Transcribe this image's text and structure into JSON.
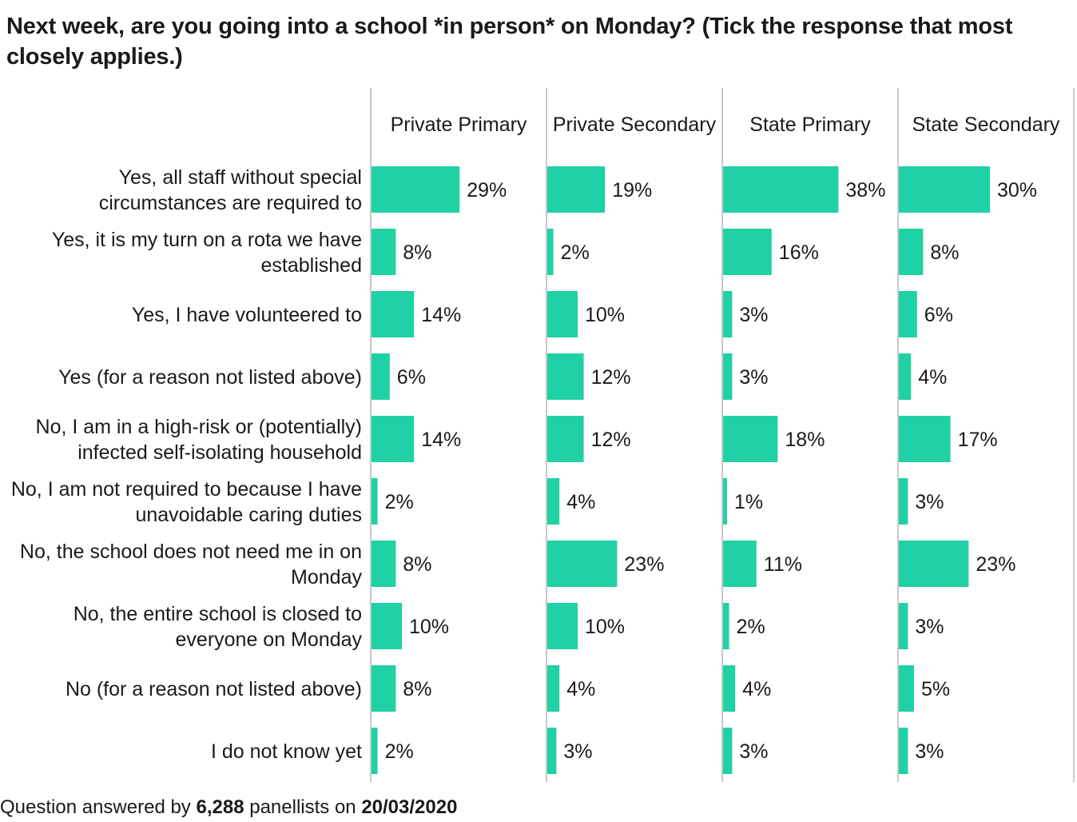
{
  "title": "Next week, are you going into a school *in person* on Monday? (Tick the response that most closely applies.)",
  "footer": {
    "prefix": "Question answered by",
    "count": "6,288",
    "middle": "panellists on",
    "date": "20/03/2020"
  },
  "colors": {
    "bar": "#20d1a5",
    "divider": "#c8c8c8",
    "text": "#1a1a1a"
  },
  "chart_data": {
    "type": "bar",
    "orientation": "horizontal",
    "layout": "small-multiples",
    "title": "Next week, are you going into a school *in person* on Monday? (Tick the response that most closely applies.)",
    "value_suffix": "%",
    "categories": [
      [
        "Yes, all staff without special",
        "circumstances are required to"
      ],
      [
        "Yes, it is my turn on a rota we have",
        "established"
      ],
      [
        "Yes, I have volunteered to"
      ],
      [
        "Yes (for a reason not listed above)"
      ],
      [
        "No, I am in a high-risk or (potentially)",
        "infected self-isolating household"
      ],
      [
        "No, I am not required to because I have",
        "unavoidable caring duties"
      ],
      [
        "No, the school does not need me in on",
        "Monday"
      ],
      [
        "No, the entire school is closed to",
        "everyone on Monday"
      ],
      [
        "No (for a reason not listed above)"
      ],
      [
        "I do not know yet"
      ]
    ],
    "series": [
      {
        "name": "Private Primary",
        "values": [
          29,
          8,
          14,
          6,
          14,
          2,
          8,
          10,
          8,
          2
        ]
      },
      {
        "name": "Private Secondary",
        "values": [
          19,
          2,
          10,
          12,
          12,
          4,
          23,
          10,
          4,
          3
        ]
      },
      {
        "name": "State Primary",
        "values": [
          38,
          16,
          3,
          3,
          18,
          1,
          11,
          2,
          4,
          3
        ]
      },
      {
        "name": "State Secondary",
        "values": [
          30,
          8,
          6,
          4,
          17,
          3,
          23,
          3,
          5,
          3
        ]
      }
    ],
    "xlim": [
      0,
      40
    ]
  }
}
